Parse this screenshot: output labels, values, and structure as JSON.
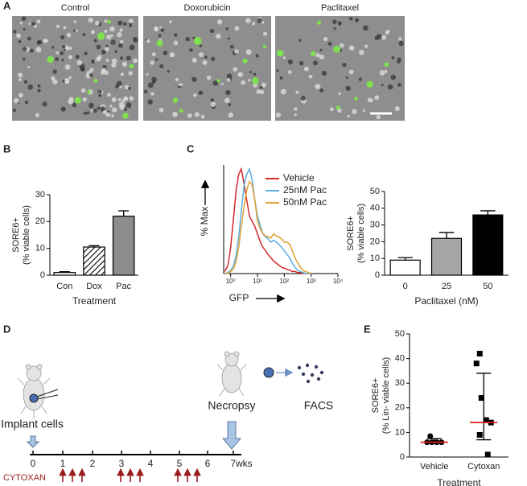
{
  "panels": [
    "A",
    "B",
    "C",
    "D",
    "E"
  ],
  "panel_a": {
    "titles": [
      "Control",
      "Doxorubicin",
      "Paclitaxel"
    ]
  },
  "chart_data": [
    {
      "type": "bar",
      "categories": [
        "Con",
        "Dox",
        "Pac"
      ],
      "values": [
        1,
        10.5,
        22
      ],
      "errors": [
        0.3,
        0.5,
        2
      ],
      "colors": [
        "#ffffff",
        "#ffffff",
        "#8c8c8c"
      ],
      "hatch": [
        false,
        true,
        false
      ],
      "ylim": [
        0,
        30
      ],
      "yticks": [
        0,
        10,
        20,
        30
      ],
      "y_label": "SORE6+",
      "y_sublabel": "(% viable cells)",
      "x_label": "Treatment"
    },
    {
      "type": "line",
      "xscale": "log",
      "x_label": "GFP",
      "y_label": "% Max",
      "x": [
        0.6,
        0.8,
        1,
        1.3,
        1.6,
        2,
        2.5,
        3.2,
        4,
        5,
        6.3,
        8,
        10,
        13,
        16,
        20,
        25,
        32,
        40,
        50,
        63,
        80,
        100,
        130,
        160,
        200,
        250,
        320,
        400,
        500,
        630,
        800,
        1000
      ],
      "series": [
        {
          "name": "Vehicle",
          "color": "#d7282f",
          "values": [
            2,
            8,
            25,
            55,
            80,
            95,
            100,
            85,
            70,
            55,
            50,
            45,
            38,
            30,
            25,
            22,
            18,
            15,
            12,
            10,
            8,
            6,
            5,
            4,
            3,
            2,
            2,
            1,
            1,
            0,
            0,
            0,
            0
          ]
        },
        {
          "name": "25nM Pac",
          "color": "#5aaee0",
          "values": [
            0,
            1,
            3,
            8,
            18,
            35,
            60,
            85,
            95,
            100,
            90,
            70,
            55,
            45,
            38,
            35,
            33,
            30,
            32,
            30,
            28,
            25,
            22,
            18,
            15,
            10,
            6,
            3,
            2,
            1,
            0,
            0,
            0
          ]
        },
        {
          "name": "50nM Pac",
          "color": "#e0a030",
          "values": [
            0,
            0,
            2,
            5,
            12,
            25,
            45,
            65,
            80,
            88,
            85,
            70,
            50,
            42,
            38,
            36,
            35,
            34,
            38,
            36,
            35,
            33,
            30,
            30,
            28,
            22,
            15,
            10,
            6,
            3,
            2,
            1,
            0
          ]
        }
      ],
      "xlim": [
        0.55,
        10000
      ],
      "xticks": [
        {
          "value": 1,
          "label": "10⁰"
        },
        {
          "value": 10,
          "label": "10¹"
        },
        {
          "value": 100,
          "label": "10²"
        },
        {
          "value": 1000,
          "label": "10³"
        },
        {
          "value": 10000,
          "label": "10⁴"
        }
      ],
      "ylim": [
        0,
        100
      ]
    },
    {
      "type": "bar",
      "categories": [
        "0",
        "25",
        "50"
      ],
      "values": [
        9,
        22,
        36
      ],
      "errors": [
        1.5,
        3.5,
        2.5
      ],
      "colors": [
        "#ffffff",
        "#a6a6a6",
        "#000000"
      ],
      "hatch": [
        false,
        false,
        false
      ],
      "ylim": [
        0,
        50
      ],
      "yticks": [
        0,
        10,
        20,
        30,
        40,
        50
      ],
      "y_label": "SORE6+",
      "y_sublabel": "(% viable cells)",
      "x_label": "Paclitaxel (nM)"
    },
    {
      "type": "dot",
      "categories": [
        "Vehicle",
        "Cytoxan"
      ],
      "values": [
        [
          8.5,
          6,
          6,
          6,
          6
        ],
        [
          42,
          38,
          24,
          15,
          14,
          9,
          1
        ]
      ],
      "markers": [
        "circle",
        "square"
      ],
      "center_values": [
        6,
        14
      ],
      "center_color": "#e0201b",
      "error_low": [
        5.5,
        7
      ],
      "error_high": [
        7.5,
        34
      ],
      "ylim": [
        0,
        50
      ],
      "yticks": [
        0,
        10,
        20,
        30,
        40,
        50
      ],
      "y_label": "SORE6+",
      "y_sublabel": "(% Lin- viable cells)",
      "x_label": "Treatment"
    }
  ],
  "panel_d": {
    "implant": "Implant cells",
    "necropsy": "Necropsy",
    "facs": "FACS",
    "drug": "CYTOXAN",
    "timeline": [
      "0",
      "1",
      "2",
      "3",
      "4",
      "5",
      "6",
      "7wks"
    ]
  }
}
